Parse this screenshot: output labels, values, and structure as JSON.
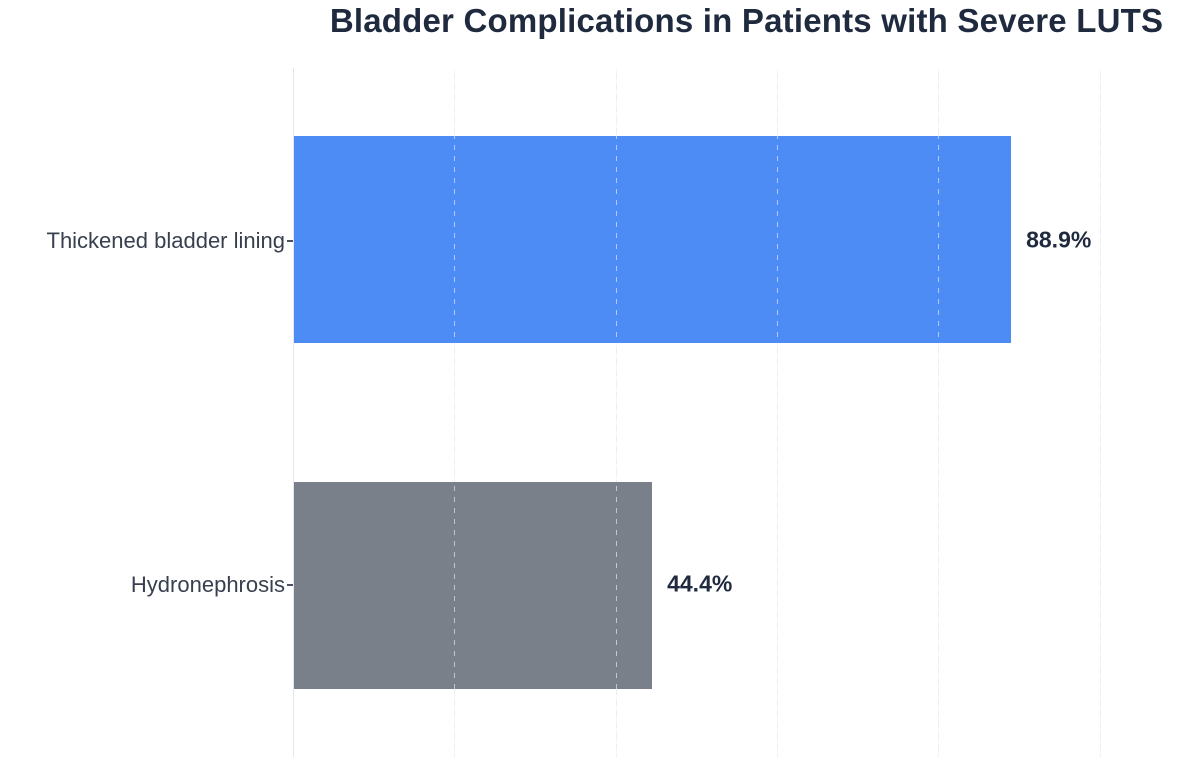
{
  "chart_data": {
    "type": "bar",
    "orientation": "horizontal",
    "title": "Bladder Complications in Patients with Severe LUTS",
    "categories": [
      "Thickened bladder lining",
      "Hydronephrosis"
    ],
    "values": [
      88.9,
      44.4
    ],
    "value_labels": [
      "88.9%",
      "44.4%"
    ],
    "xlabel": "",
    "ylabel": "",
    "xlim": [
      0,
      112.4
    ],
    "grid_ticks": [
      20,
      40,
      60,
      80,
      100
    ],
    "grid": "vertical gridlines, faint solid on background, white dashed over bars",
    "legend": "none",
    "bar_colors": [
      "#4d8cf5",
      "#7a8089"
    ],
    "colors": {
      "background": "#ffffff",
      "title": "#1f2a3e",
      "value_label": "#1f2a3e",
      "category_label": "#38404f",
      "gridline": "#eaeef5",
      "axis_line": "#e1e7ee",
      "tick": "#4a5260"
    }
  }
}
